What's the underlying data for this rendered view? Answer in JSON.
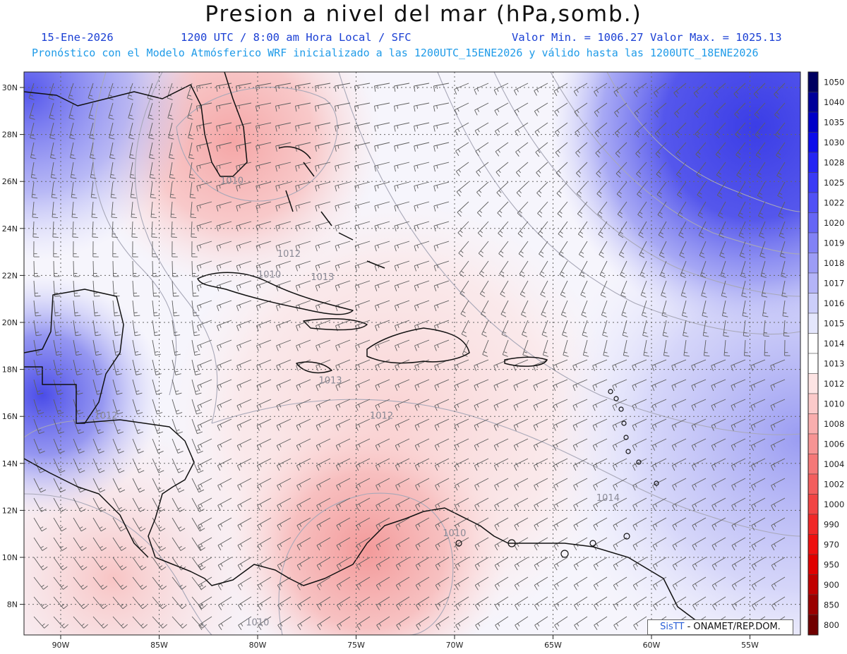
{
  "header": {
    "title": "Presion a nivel del mar (hPa,somb.)",
    "date": "15-Ene-2026",
    "time": "1200 UTC / 8:00 am Hora Local / SFC",
    "minmax": "Valor Min. = 1006.27  Valor Max. = 1025.13",
    "forecast": "Pronóstico con el Modelo Atmósferico WRF inicializado a las 1200UTC_15ENE2026 y válido hasta las  1200UTC_18ENE2026"
  },
  "colors": {
    "header_text": "#1a3fd4",
    "forecast_text": "#1f9be8",
    "high": "#3c3ee0",
    "low": "#f5a3a3",
    "mid": "#ffffff"
  },
  "axes": {
    "lat_labels": [
      "30N",
      "28N",
      "26N",
      "24N",
      "22N",
      "20N",
      "18N",
      "16N",
      "14N",
      "12N",
      "10N",
      "8N"
    ],
    "lon_labels": [
      "90W",
      "85W",
      "80W",
      "75W",
      "70W",
      "65W",
      "60W",
      "55W"
    ]
  },
  "colorbar": {
    "labels": [
      "1050",
      "1040",
      "1035",
      "1030",
      "1028",
      "1025",
      "1022",
      "1020",
      "1019",
      "1018",
      "1017",
      "1016",
      "1015",
      "1014",
      "1013",
      "1012",
      "1010",
      "1008",
      "1006",
      "1004",
      "1002",
      "1000",
      "990",
      "970",
      "950",
      "900",
      "850",
      "800"
    ],
    "colors": [
      "#000060",
      "#00009a",
      "#0000c8",
      "#0c0cea",
      "#2424f4",
      "#3a3af6",
      "#5050f6",
      "#6666f6",
      "#8282f6",
      "#9c9cf6",
      "#b4b4f8",
      "#cccefa",
      "#e4e6fc",
      "#ffffff",
      "#ffffff",
      "#fde4e4",
      "#fbcaca",
      "#f9aeae",
      "#f79494",
      "#f57878",
      "#f35e5e",
      "#f14444",
      "#f02828",
      "#ee1010",
      "#e00000",
      "#c00000",
      "#9a0000",
      "#700000"
    ]
  },
  "contour_labels": [
    {
      "text": "1010",
      "lon": -81.9,
      "lat": 25.9
    },
    {
      "text": "1012",
      "lon": -79.0,
      "lat": 22.8
    },
    {
      "text": "1013",
      "lon": -77.3,
      "lat": 21.8
    },
    {
      "text": "1010",
      "lon": -80.0,
      "lat": 21.9
    },
    {
      "text": "1013",
      "lon": -76.9,
      "lat": 17.4
    },
    {
      "text": "1012",
      "lon": -74.3,
      "lat": 15.9
    },
    {
      "text": "1012",
      "lon": -88.3,
      "lat": 15.9
    },
    {
      "text": "1010",
      "lon": -70.6,
      "lat": 10.9
    },
    {
      "text": "1014",
      "lon": -62.8,
      "lat": 12.4
    },
    {
      "text": "1010",
      "lon": -80.6,
      "lat": 7.1
    }
  ],
  "credit": {
    "sis": "SisTT",
    "rest": " - ONAMET/REP.DOM."
  }
}
